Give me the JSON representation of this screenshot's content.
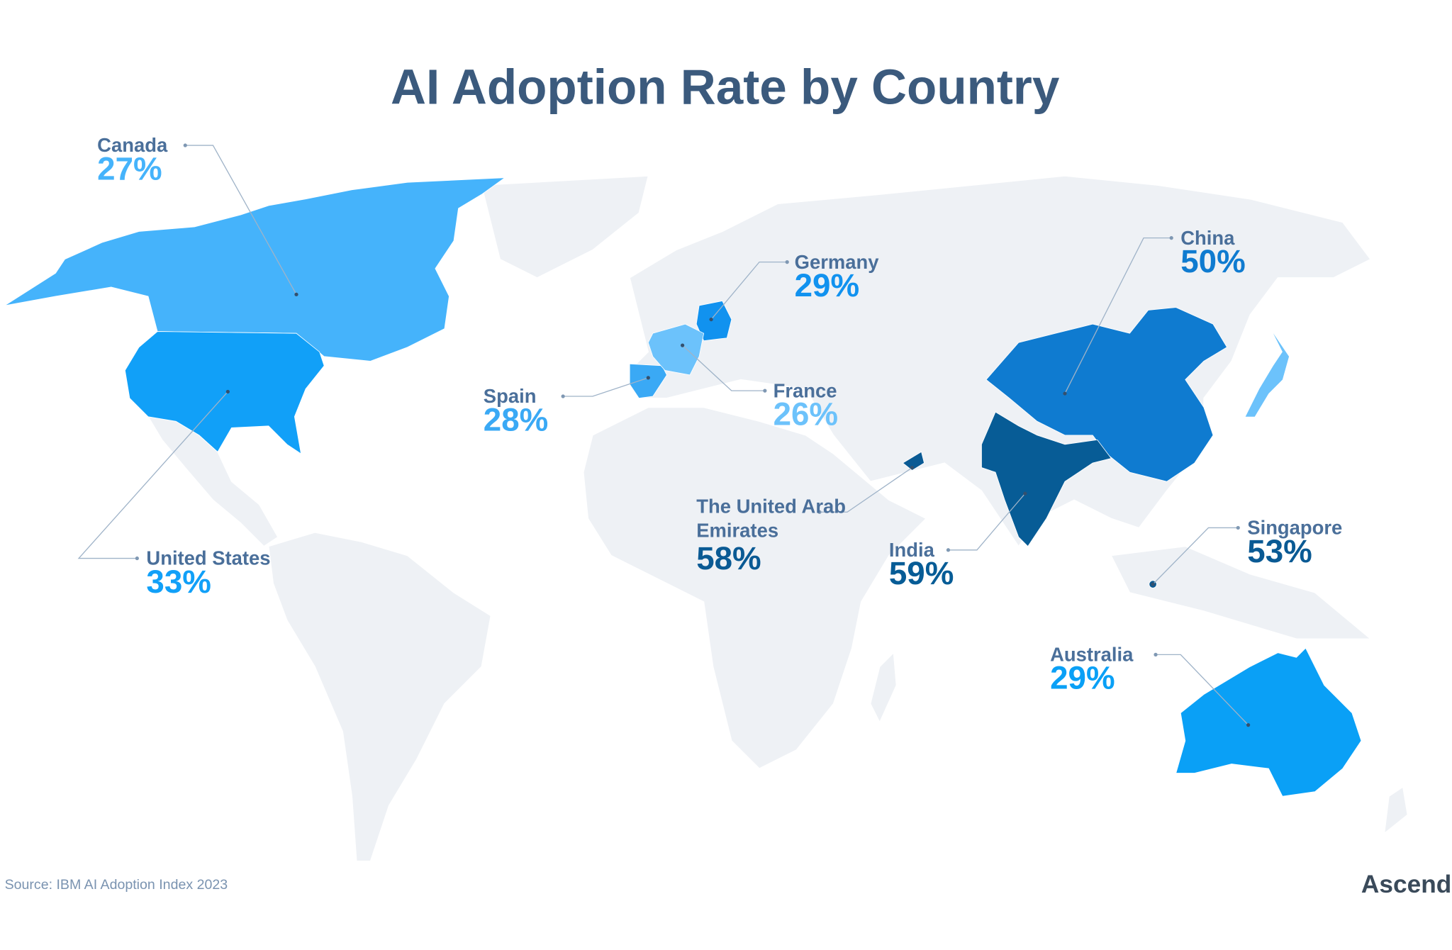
{
  "chart_data": {
    "type": "map",
    "title": "AI Adoption Rate by Country",
    "categories": [
      "Canada",
      "United States",
      "Germany",
      "China",
      "Spain",
      "France",
      "The United Arab Emirates",
      "India",
      "Singapore",
      "Australia"
    ],
    "values": [
      27,
      33,
      29,
      50,
      28,
      26,
      58,
      59,
      53,
      29
    ],
    "value_labels": [
      "27%",
      "33%",
      "29%",
      "50%",
      "28%",
      "26%",
      "58%",
      "59%",
      "53%",
      "29%"
    ],
    "colors": [
      "#45b3fb",
      "#11a0f8",
      "#1192ef",
      "#0f7bd0",
      "#3aa9f5",
      "#6cc2fb",
      "#0a5a94",
      "#075c96",
      "#0a5a94",
      "#0aa0f6"
    ],
    "source": "Source: IBM AI Adoption Index 2023",
    "brand": "Ascendix"
  }
}
